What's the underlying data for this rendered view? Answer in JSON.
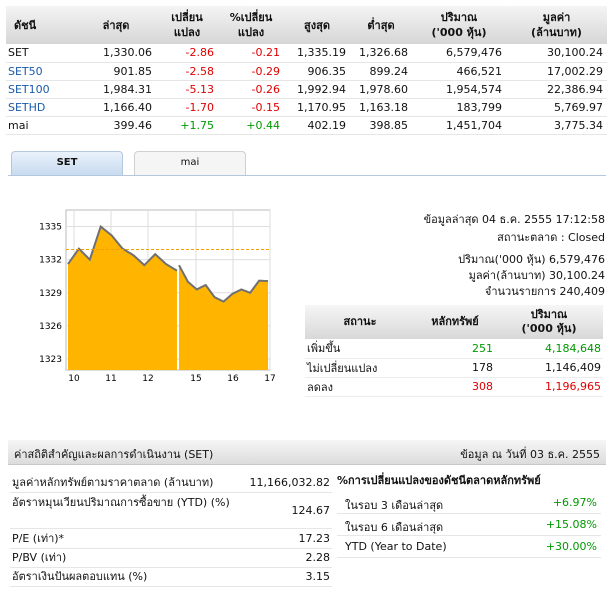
{
  "index_table": {
    "headers": [
      "ดัชนี",
      "ล่าสุด",
      "เปลี่ยน\nแปลง",
      "%เปลี่ยน\nแปลง",
      "สูงสุด",
      "ต่ำสุด",
      "ปริมาณ\n('000 หุ้น)",
      "มูลค่า\n(ล้านบาท)"
    ],
    "rows": [
      {
        "name": "SET",
        "last": "1,330.06",
        "chg": "-2.86",
        "pchg": "-0.21",
        "high": "1,335.19",
        "low": "1,326.68",
        "vol": "6,579,476",
        "val": "30,100.24",
        "dir": "neg",
        "link": false
      },
      {
        "name": "SET50",
        "last": "901.85",
        "chg": "-2.58",
        "pchg": "-0.29",
        "high": "906.35",
        "low": "899.24",
        "vol": "466,521",
        "val": "17,002.29",
        "dir": "neg",
        "link": true
      },
      {
        "name": "SET100",
        "last": "1,984.31",
        "chg": "-5.13",
        "pchg": "-0.26",
        "high": "1,992.94",
        "low": "1,978.60",
        "vol": "1,954,574",
        "val": "22,386.94",
        "dir": "neg",
        "link": true
      },
      {
        "name": "SETHD",
        "last": "1,166.40",
        "chg": "-1.70",
        "pchg": "-0.15",
        "high": "1,170.95",
        "low": "1,163.18",
        "vol": "183,799",
        "val": "5,769.97",
        "dir": "neg",
        "link": true
      },
      {
        "name": "mai",
        "last": "399.46",
        "chg": "+1.75",
        "pchg": "+0.44",
        "high": "402.19",
        "low": "398.85",
        "vol": "1,451,704",
        "val": "3,775.34",
        "dir": "pos",
        "link": false
      }
    ]
  },
  "tabs": {
    "set": "SET",
    "mai": "mai"
  },
  "chart_data": {
    "type": "area",
    "y_ticks": [
      "1335",
      "1332",
      "1329",
      "1326",
      "1323"
    ],
    "x_ticks": [
      "10",
      "11",
      "12",
      "15",
      "16",
      "17"
    ],
    "ylim": [
      1322,
      1336.5
    ],
    "reference_line": 1332.92,
    "x": [
      "10:00",
      "10:15",
      "10:30",
      "10:45",
      "11:00",
      "11:15",
      "11:30",
      "11:45",
      "12:00",
      "12:15",
      "12:30",
      "14:30",
      "14:45",
      "15:00",
      "15:15",
      "15:30",
      "15:45",
      "16:00",
      "16:15",
      "16:30",
      "16:45",
      "17:00"
    ],
    "y": [
      1331.6,
      1333.0,
      1332.0,
      1335.0,
      1334.2,
      1333.0,
      1332.4,
      1331.5,
      1332.5,
      1331.6,
      1331.0,
      1331.5,
      1330.0,
      1329.3,
      1329.7,
      1328.6,
      1328.2,
      1328.9,
      1329.3,
      1329.0,
      1330.1,
      1330.06
    ],
    "gap_after": "12:30",
    "colors": {
      "fill": "#ffb400",
      "line": "#707070",
      "grid": "#dedede",
      "ref": "#f2a000"
    }
  },
  "info": {
    "updated": "ข้อมูลล่าสุด 04 ธ.ค. 2555 17:12:58",
    "status": "สถานะตลาด : Closed",
    "volume": "ปริมาณ('000 หุ้น) 6,579,476",
    "value": "มูลค่า(ล้านบาท) 30,100.24",
    "deals": "จำนวนรายการ 240,409"
  },
  "status_table": {
    "headers": [
      "สถานะ",
      "หลักทรัพย์",
      "ปริมาณ\n('000 หุ้น)"
    ],
    "rows": [
      {
        "label": "เพิ่มขึ้น",
        "count": "251",
        "vol": "4,184,648",
        "color": "#009900"
      },
      {
        "label": "ไม่เปลี่ยนแปลง",
        "count": "178",
        "vol": "1,146,409",
        "color": "#111111"
      },
      {
        "label": "ลดลง",
        "count": "308",
        "vol": "1,196,965",
        "color": "#e00000"
      }
    ]
  },
  "stats": {
    "title": "ค่าสถิติสำคัญและผลการดำเนินงาน (SET)",
    "date": "ข้อมูล ณ วันที่ 03 ธ.ค. 2555",
    "rows": [
      {
        "label": "มูลค่าหลักทรัพย์ตามราคาตลาด (ล้านบาท)",
        "value": "11,166,032.82"
      },
      {
        "label": "อัตราหมุนเวียนปริมาณการซื้อขาย (YTD) (%)",
        "value": "124.67"
      },
      {
        "label": "P/E (เท่า)*",
        "value": "17.23"
      },
      {
        "label": "P/BV (เท่า)",
        "value": "2.28"
      },
      {
        "label": "อัตราเงินปันผลตอบแทน (%)",
        "value": "3.15"
      }
    ],
    "change_title": "%การเปลี่ยนแปลงของดัชนีตลาดหลักทรัพย์",
    "changes": [
      {
        "label": "ในรอบ 3 เดือนล่าสุด",
        "value": "+6.97%"
      },
      {
        "label": "ในรอบ 6 เดือนล่าสุด",
        "value": "+15.08%"
      },
      {
        "label": "YTD (Year to Date)",
        "value": "+30.00%"
      }
    ]
  }
}
